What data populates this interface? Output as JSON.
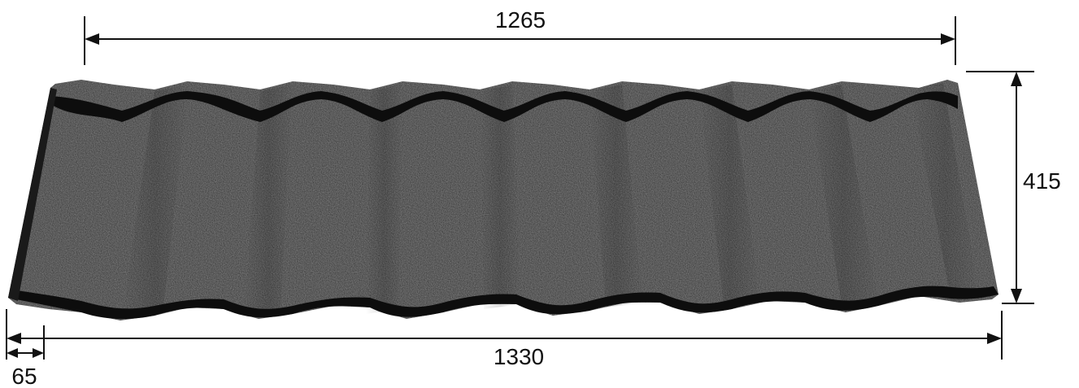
{
  "dimensions": {
    "top_width": "1265",
    "height": "415",
    "bottom_width": "1330",
    "overlap": "65"
  },
  "colors": {
    "tile_body": "#2b2b2b",
    "tile_shadow": "#0d0d0d",
    "tile_highlight": "#3a3a3a",
    "dimension_line": "#111111"
  },
  "illustration": "stone-coated-roof-tile"
}
